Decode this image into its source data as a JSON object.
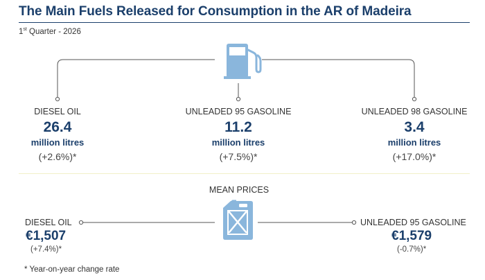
{
  "header": {
    "title": "The Main Fuels Released for Consumption in the AR of Madeira",
    "subtitle_ordinal": "1",
    "subtitle_sup": "st",
    "subtitle_rest": " Quarter - 2026"
  },
  "icons": {
    "top": "fuel-pump-icon",
    "middle": "jerry-can-icon"
  },
  "consumption": [
    {
      "label": "DIESEL OIL",
      "value": "26.4",
      "unit": "million litres",
      "change": "(+2.6%)*"
    },
    {
      "label": "UNLEADED 95 GASOLINE",
      "value": "11.2",
      "unit": "million litres",
      "change": "(+7.5%)*"
    },
    {
      "label": "UNLEADED 98 GASOLINE",
      "value": "3.4",
      "unit": "million litres",
      "change": "(+17.0%)*"
    }
  ],
  "mean_prices": {
    "title": "MEAN PRICES",
    "left": {
      "label": "DIESEL OIL",
      "value": "€1,507",
      "change": "(+7.4%)*"
    },
    "right": {
      "label": "UNLEADED 95 GASOLINE",
      "value": "€1,579",
      "change": "(-0.7%)*"
    }
  },
  "footnote": "* Year-on-year change rate",
  "colors": {
    "navy": "#1b3f6b",
    "icon_blue": "#8ab6dc",
    "line_gray": "#555555"
  }
}
